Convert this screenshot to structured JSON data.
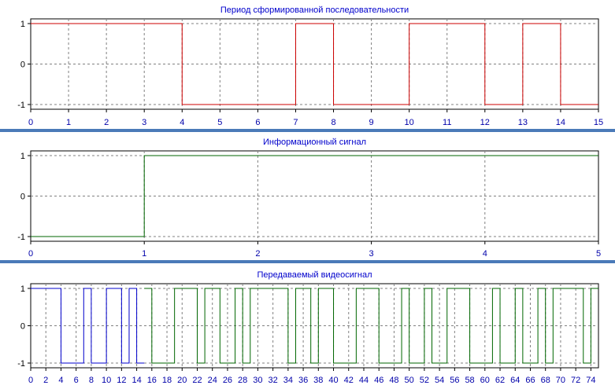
{
  "chart_data": [
    {
      "type": "line",
      "step": true,
      "title": "Период сформированной последовательности",
      "xlim": [
        0,
        15
      ],
      "ylim": [
        -1,
        1
      ],
      "x_ticks": [
        0,
        1,
        2,
        3,
        4,
        5,
        6,
        7,
        8,
        9,
        10,
        11,
        12,
        13,
        14,
        15
      ],
      "y_ticks": [
        1,
        0,
        -1
      ],
      "grid": true,
      "colors": [
        "#cc0000"
      ],
      "series": [
        {
          "x": [
            0,
            4,
            7,
            8,
            10,
            12,
            13,
            14,
            15
          ],
          "y": [
            1,
            -1,
            1,
            -1,
            1,
            -1,
            1,
            -1,
            -1
          ]
        }
      ]
    },
    {
      "type": "line",
      "step": true,
      "title": "Информационный сигнал",
      "xlim": [
        0,
        5
      ],
      "ylim": [
        -1,
        1
      ],
      "x_ticks": [
        0,
        1,
        2,
        3,
        4,
        5
      ],
      "y_ticks": [
        1,
        0,
        -1
      ],
      "grid": true,
      "colors": [
        "#006600"
      ],
      "series": [
        {
          "x": [
            0,
            1,
            5
          ],
          "y": [
            -1,
            1,
            1
          ]
        }
      ]
    },
    {
      "type": "line",
      "step": true,
      "title": "Передаваемый видеосигнал",
      "xlim": [
        0,
        75
      ],
      "ylim": [
        -1,
        1
      ],
      "x_ticks": [
        0,
        2,
        4,
        6,
        8,
        10,
        12,
        14,
        16,
        18,
        20,
        22,
        24,
        26,
        28,
        30,
        32,
        34,
        36,
        38,
        40,
        42,
        44,
        46,
        48,
        50,
        52,
        54,
        56,
        58,
        60,
        62,
        64,
        66,
        68,
        70,
        72,
        74
      ],
      "y_ticks": [
        1,
        0,
        -1
      ],
      "grid": true,
      "colors": [
        "#0000cc",
        "#006600"
      ],
      "series": [
        {
          "x": [
            0,
            4,
            7,
            8,
            10,
            12,
            13,
            14,
            15
          ],
          "y": [
            1,
            -1,
            1,
            -1,
            1,
            -1,
            1,
            -1,
            -1
          ]
        },
        {
          "x": [
            15,
            16,
            19,
            22,
            23,
            25,
            27,
            28,
            29,
            34,
            35,
            37,
            38,
            40,
            43,
            46,
            49,
            50,
            52,
            53,
            55,
            58,
            61,
            62,
            64,
            65,
            67,
            68,
            69,
            73,
            74,
            75
          ],
          "y": [
            1,
            -1,
            1,
            -1,
            1,
            -1,
            1,
            -1,
            1,
            -1,
            1,
            -1,
            1,
            -1,
            1,
            -1,
            1,
            -1,
            1,
            -1,
            1,
            -1,
            1,
            -1,
            1,
            -1,
            1,
            -1,
            1,
            -1,
            1,
            1
          ]
        }
      ]
    }
  ]
}
